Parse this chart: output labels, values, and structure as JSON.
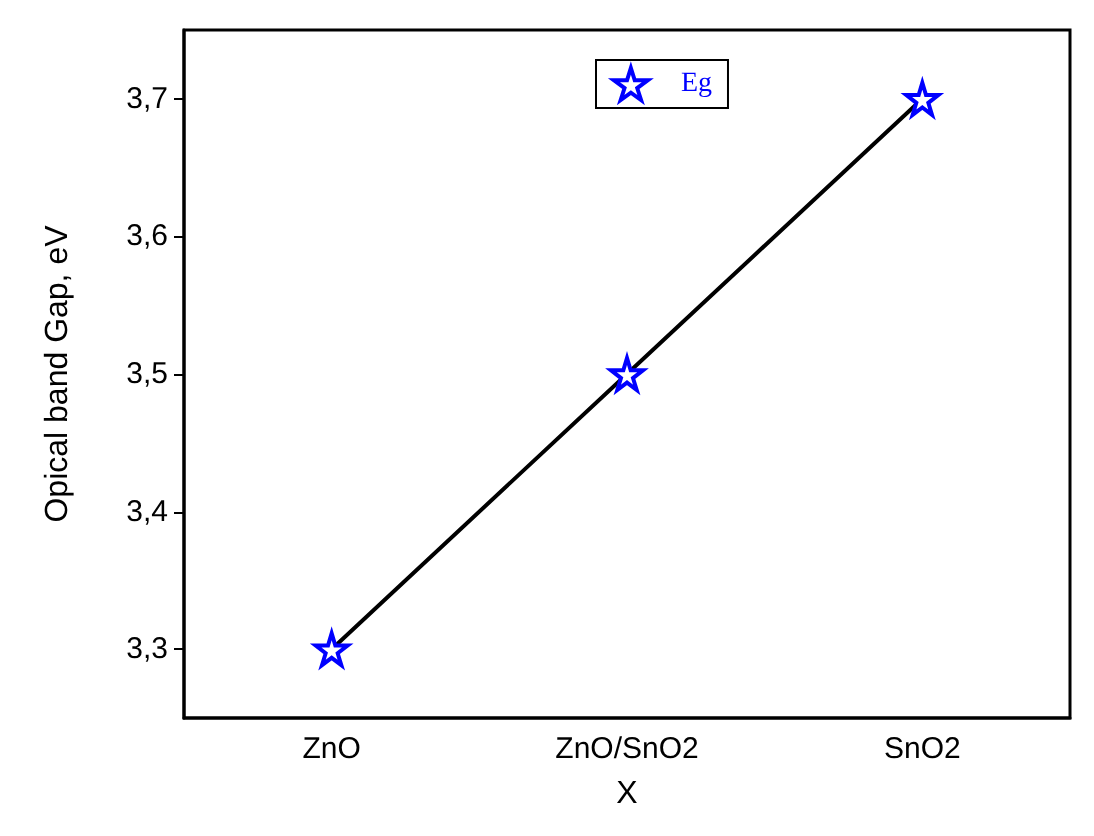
{
  "chart_data": {
    "type": "line",
    "xlabel": "X",
    "ylabel": "Opical band Gap, eV",
    "categories": [
      "ZnO",
      "ZnO/SnO2",
      "SnO2"
    ],
    "series": [
      {
        "name": "Eg",
        "color": "#0000ff",
        "values": [
          3.3,
          3.5,
          3.7
        ]
      }
    ],
    "ylim": [
      3.25,
      3.75
    ],
    "yticks": [
      {
        "value": 3.3,
        "label": "3,3"
      },
      {
        "value": 3.4,
        "label": "3,4"
      },
      {
        "value": 3.5,
        "label": "3,5"
      },
      {
        "value": 3.6,
        "label": "3,6"
      },
      {
        "value": 3.7,
        "label": "3,7"
      }
    ],
    "marker": "star",
    "line_style": "solid",
    "legend": "top",
    "grid": false
  }
}
